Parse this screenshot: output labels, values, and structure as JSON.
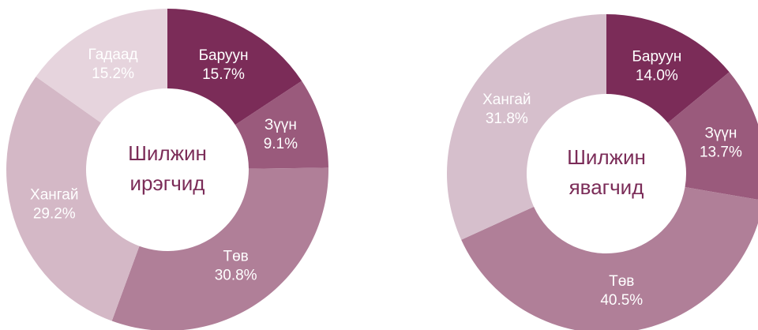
{
  "chart_data": [
    {
      "type": "pie",
      "center_label": [
        "Шилжин",
        "ирэгчид"
      ],
      "categories": [
        "Баруун",
        "Зүүн",
        "Төв",
        "Хангай",
        "Гадаад"
      ],
      "values": [
        15.7,
        9.1,
        30.8,
        29.2,
        15.2
      ],
      "value_labels": [
        "15.7%",
        "9.1%",
        "30.8%",
        "29.2%",
        "15.2%"
      ],
      "colors": [
        "#7b2c58",
        "#9a5a7c",
        "#b07f98",
        "#d4b8c6",
        "#e6d4dd"
      ]
    },
    {
      "type": "pie",
      "center_label": [
        "Шилжин",
        "явагчид"
      ],
      "categories": [
        "Баруун",
        "Зүүн",
        "Төв",
        "Хангай"
      ],
      "values": [
        14.0,
        13.7,
        40.5,
        31.8
      ],
      "value_labels": [
        "14.0%",
        "13.7%",
        "40.5%",
        "31.8%"
      ],
      "colors": [
        "#7b2c58",
        "#9a5a7c",
        "#b07f98",
        "#d6bfcc"
      ]
    }
  ]
}
